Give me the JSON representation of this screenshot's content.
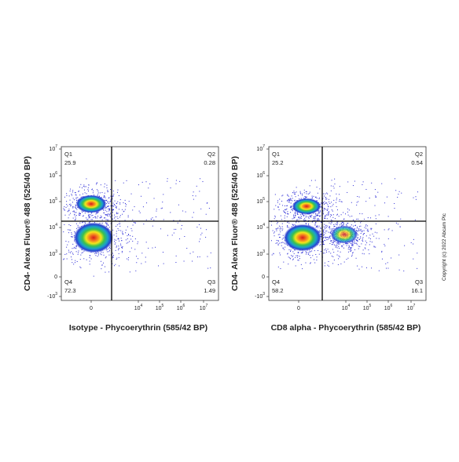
{
  "plots": [
    {
      "x_label": "Isotype - Phycoerythrin (585/42 BP)",
      "y_label": "CD4- Alexa Fluor® 488  (525/40 BP)",
      "y_ticks": [
        {
          "base": "10",
          "exp": "7"
        },
        {
          "base": "10",
          "exp": "6"
        },
        {
          "base": "10",
          "exp": "5"
        },
        {
          "base": "10",
          "exp": "4"
        },
        {
          "base": "10",
          "exp": "3"
        },
        {
          "base": "0"
        },
        {
          "base": "-10",
          "exp": "3"
        }
      ],
      "x_ticks": [
        {
          "base": "0"
        },
        {
          "base": "10",
          "exp": "4"
        },
        {
          "base": "10",
          "exp": "5"
        },
        {
          "base": "10",
          "exp": "6"
        },
        {
          "base": "10",
          "exp": "7"
        }
      ],
      "quadrants": [
        {
          "name": "Q1",
          "value": "25.9"
        },
        {
          "name": "Q2",
          "value": "0.28"
        },
        {
          "name": "Q3",
          "value": "1.49"
        },
        {
          "name": "Q4",
          "value": "72.3"
        }
      ]
    },
    {
      "x_label": "CD8 alpha - Phycoerythrin (585/42 BP)",
      "y_label": "CD4- Alexa Fluor® 488  (525/40 BP)",
      "y_ticks": [
        {
          "base": "10",
          "exp": "7"
        },
        {
          "base": "10",
          "exp": "6"
        },
        {
          "base": "10",
          "exp": "5"
        },
        {
          "base": "10",
          "exp": "4"
        },
        {
          "base": "10",
          "exp": "3"
        },
        {
          "base": "0"
        },
        {
          "base": "-10",
          "exp": "3"
        }
      ],
      "x_ticks": [
        {
          "base": "0"
        },
        {
          "base": "10",
          "exp": "4"
        },
        {
          "base": "10",
          "exp": "5"
        },
        {
          "base": "10",
          "exp": "6"
        },
        {
          "base": "10",
          "exp": "7"
        }
      ],
      "quadrants": [
        {
          "name": "Q1",
          "value": "25.2"
        },
        {
          "name": "Q2",
          "value": "0.54"
        },
        {
          "name": "Q3",
          "value": "16.1"
        },
        {
          "name": "Q4",
          "value": "58.2"
        }
      ]
    }
  ],
  "copyright": "Copyright (c) 2022 Abcam Plc"
}
